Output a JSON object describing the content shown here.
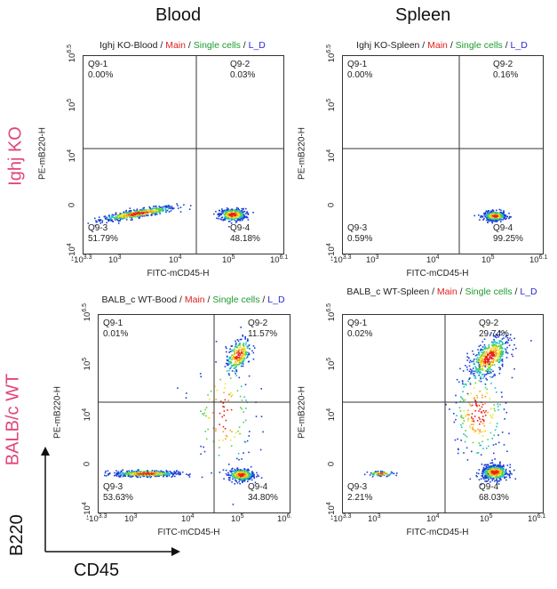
{
  "column_headers": [
    "Blood",
    "Spleen"
  ],
  "row_headers": [
    "Ighj KO",
    "BALB/c WT"
  ],
  "axis_arrows": {
    "y_label": "B220",
    "x_label": "CD45"
  },
  "colors": {
    "row_header": "#e0457b",
    "main": "#e02020",
    "single": "#1f9a2e",
    "ld": "#2a2ad0"
  },
  "chart_data": [
    {
      "type": "scatter",
      "title_parts": [
        "Ighj KO-Blood /",
        "Main",
        "/",
        "Single cells",
        "/",
        "L_D"
      ],
      "xlabel": "FITC-mCD45-H",
      "ylabel": "PE-mB220-H",
      "x_ticks": [
        "-10^3.3",
        "10^3",
        "10^4",
        "10^5",
        "10^6.1"
      ],
      "y_ticks": [
        "-10^4",
        "0",
        "10^4",
        "10^5",
        "10^6.5"
      ],
      "quadrants": [
        {
          "name": "Q9-1",
          "value": "0.00%"
        },
        {
          "name": "Q9-2",
          "value": "0.03%"
        },
        {
          "name": "Q9-3",
          "value": "51.79%"
        },
        {
          "name": "Q9-4",
          "value": "48.18%"
        }
      ],
      "populations": [
        {
          "cx": 3.4,
          "cy": 0.15,
          "sx": 0.35,
          "sy": 0.08,
          "n": 520,
          "slope": 0.35
        },
        {
          "cx": 5.15,
          "cy": 0.1,
          "sx": 0.12,
          "sy": 0.12,
          "n": 420,
          "slope": 0
        }
      ]
    },
    {
      "type": "scatter",
      "title_parts": [
        "Ighj KO-Spleen /",
        "Main",
        "/",
        "Single cells",
        "/",
        "L_D"
      ],
      "xlabel": "FITC-mCD45-H",
      "ylabel": "PE-mB220-H",
      "x_ticks": [
        "-10^3.3",
        "10^3",
        "10^4",
        "10^5",
        "10^6.1"
      ],
      "y_ticks": [
        "-10^4",
        "0",
        "10^4",
        "10^5",
        "10^6.5"
      ],
      "quadrants": [
        {
          "name": "Q9-1",
          "value": "0.00%"
        },
        {
          "name": "Q9-2",
          "value": "0.16%"
        },
        {
          "name": "Q9-3",
          "value": "0.59%"
        },
        {
          "name": "Q9-4",
          "value": "99.25%"
        }
      ],
      "populations": [
        {
          "cx": 5.2,
          "cy": 0.05,
          "sx": 0.1,
          "sy": 0.09,
          "n": 420,
          "slope": 0
        }
      ]
    },
    {
      "type": "scatter",
      "title_parts": [
        "BALB_c WT-Bood /",
        "Main",
        "/",
        "Single cells",
        "/",
        "L_D"
      ],
      "xlabel": "FITC-mCD45-H",
      "ylabel": "PE-mB220-H",
      "x_ticks": [
        "-10^3.3",
        "10^3",
        "10^4",
        "10^5",
        "10^6."
      ],
      "y_ticks": [
        "-10^4",
        "0",
        "10^4",
        "10^5",
        "10^6.5"
      ],
      "quadrants": [
        {
          "name": "Q9-1",
          "value": "0.01%"
        },
        {
          "name": "Q9-2",
          "value": "11.57%"
        },
        {
          "name": "Q9-3",
          "value": "53.63%"
        },
        {
          "name": "Q9-4",
          "value": "34.80%"
        }
      ],
      "populations": [
        {
          "cx": 3.3,
          "cy": 0.1,
          "sx": 0.3,
          "sy": 0.06,
          "n": 520,
          "slope": 0
        },
        {
          "cx": 5.15,
          "cy": 0.05,
          "sx": 0.12,
          "sy": 0.12,
          "n": 380,
          "slope": 0
        },
        {
          "cx": 5.1,
          "cy": 4.9,
          "sx": 0.12,
          "sy": 0.3,
          "n": 260,
          "slope": 1.2
        },
        {
          "cx": 4.8,
          "cy": 2.5,
          "sx": 0.3,
          "sy": 1.2,
          "n": 120,
          "slope": 0
        }
      ]
    },
    {
      "type": "scatter",
      "title_parts": [
        "BALB_c WT-Spleen /",
        "Main",
        "/",
        "Single cells",
        "/",
        "L_D"
      ],
      "xlabel": "FITC-mCD45-H",
      "ylabel": "PE-mB220-H",
      "x_ticks": [
        "-10^3.3",
        "10^3",
        "10^4",
        "10^5",
        "10^6.1"
      ],
      "y_ticks": [
        "-10^4",
        "0",
        "10^4",
        "10^5",
        "10^6.5"
      ],
      "quadrants": [
        {
          "name": "Q9-1",
          "value": "0.02%"
        },
        {
          "name": "Q9-2",
          "value": "29.74%"
        },
        {
          "name": "Q9-3",
          "value": "2.21%"
        },
        {
          "name": "Q9-4",
          "value": "68.03%"
        }
      ],
      "populations": [
        {
          "cx": 5.2,
          "cy": 0.15,
          "sx": 0.12,
          "sy": 0.15,
          "n": 520,
          "slope": 0
        },
        {
          "cx": 5.1,
          "cy": 4.8,
          "sx": 0.18,
          "sy": 0.35,
          "n": 480,
          "slope": 1.3
        },
        {
          "cx": 3.1,
          "cy": 0.1,
          "sx": 0.12,
          "sy": 0.05,
          "n": 80,
          "slope": 0
        },
        {
          "cx": 4.9,
          "cy": 2.6,
          "sx": 0.25,
          "sy": 1.0,
          "n": 220,
          "slope": 0
        }
      ]
    }
  ]
}
